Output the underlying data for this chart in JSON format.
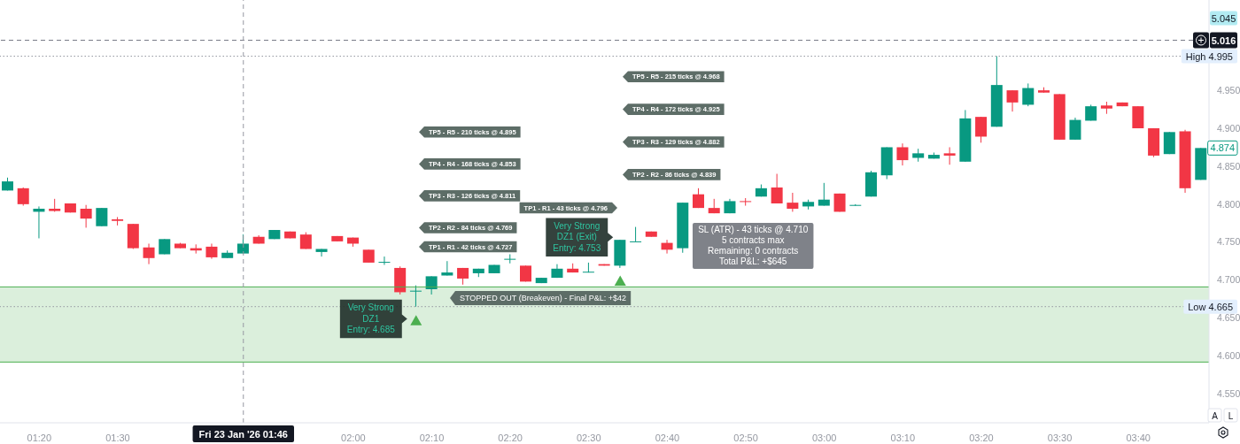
{
  "chart_data": {
    "type": "candlestick",
    "x": [
      "2026-01-23T01:16",
      "2026-01-23T01:18",
      "2026-01-23T01:20",
      "2026-01-23T01:22",
      "2026-01-23T01:24",
      "2026-01-23T01:26",
      "2026-01-23T01:28",
      "2026-01-23T01:30",
      "2026-01-23T01:32",
      "2026-01-23T01:34",
      "2026-01-23T01:36",
      "2026-01-23T01:38",
      "2026-01-23T01:40",
      "2026-01-23T01:42",
      "2026-01-23T01:44",
      "2026-01-23T01:46",
      "2026-01-23T01:48",
      "2026-01-23T01:50",
      "2026-01-23T01:52",
      "2026-01-23T01:54",
      "2026-01-23T01:56",
      "2026-01-23T01:58",
      "2026-01-23T02:00",
      "2026-01-23T02:02",
      "2026-01-23T02:04",
      "2026-01-23T02:06",
      "2026-01-23T02:08",
      "2026-01-23T02:10",
      "2026-01-23T02:12",
      "2026-01-23T02:14",
      "2026-01-23T02:16",
      "2026-01-23T02:18",
      "2026-01-23T02:20",
      "2026-01-23T02:22",
      "2026-01-23T02:24",
      "2026-01-23T02:26",
      "2026-01-23T02:28",
      "2026-01-23T02:30",
      "2026-01-23T02:32",
      "2026-01-23T02:34",
      "2026-01-23T02:36",
      "2026-01-23T02:38",
      "2026-01-23T02:40",
      "2026-01-23T02:42",
      "2026-01-23T02:44",
      "2026-01-23T02:46",
      "2026-01-23T02:48",
      "2026-01-23T02:50",
      "2026-01-23T02:52",
      "2026-01-23T02:54",
      "2026-01-23T02:56",
      "2026-01-23T02:58",
      "2026-01-23T03:00",
      "2026-01-23T03:02",
      "2026-01-23T03:04",
      "2026-01-23T03:06",
      "2026-01-23T03:08",
      "2026-01-23T03:10",
      "2026-01-23T03:12",
      "2026-01-23T03:14",
      "2026-01-23T03:16",
      "2026-01-23T03:18",
      "2026-01-23T03:20",
      "2026-01-23T03:22",
      "2026-01-23T03:24",
      "2026-01-23T03:26",
      "2026-01-23T03:28",
      "2026-01-23T03:30",
      "2026-01-23T03:32",
      "2026-01-23T03:34",
      "2026-01-23T03:36",
      "2026-01-23T03:38",
      "2026-01-23T03:40",
      "2026-01-23T03:42",
      "2026-01-23T03:44",
      "2026-01-23T03:46",
      "2026-01-23T03:48"
    ],
    "ohlc": [
      [
        4.818,
        4.835,
        4.818,
        4.83
      ],
      [
        4.821,
        4.822,
        4.798,
        4.8
      ],
      [
        4.79,
        4.797,
        4.755,
        4.794
      ],
      [
        4.794,
        4.807,
        4.79,
        4.791
      ],
      [
        4.801,
        4.801,
        4.789,
        4.789
      ],
      [
        4.794,
        4.799,
        4.769,
        4.781
      ],
      [
        4.771,
        4.795,
        4.771,
        4.795
      ],
      [
        4.78,
        4.783,
        4.772,
        4.778
      ],
      [
        4.774,
        4.774,
        4.741,
        4.742
      ],
      [
        4.743,
        4.748,
        4.721,
        4.729
      ],
      [
        4.734,
        4.754,
        4.734,
        4.754
      ],
      [
        4.748,
        4.749,
        4.742,
        4.742
      ],
      [
        4.742,
        4.747,
        4.735,
        4.739
      ],
      [
        4.744,
        4.748,
        4.728,
        4.73
      ],
      [
        4.729,
        4.739,
        4.729,
        4.736
      ],
      [
        4.735,
        4.76,
        4.735,
        4.748
      ],
      [
        4.757,
        4.759,
        4.748,
        4.748
      ],
      [
        4.754,
        4.766,
        4.754,
        4.766
      ],
      [
        4.764,
        4.764,
        4.755,
        4.755
      ],
      [
        4.76,
        4.763,
        4.741,
        4.741
      ],
      [
        4.737,
        4.741,
        4.731,
        4.741
      ],
      [
        4.758,
        4.758,
        4.751,
        4.751
      ],
      [
        4.756,
        4.756,
        4.744,
        4.748
      ],
      [
        4.74,
        4.74,
        4.723,
        4.723
      ],
      [
        4.723,
        4.731,
        4.72,
        4.724
      ],
      [
        4.716,
        4.718,
        4.681,
        4.684
      ],
      [
        4.685,
        4.693,
        4.665,
        4.686
      ],
      [
        4.688,
        4.705,
        4.681,
        4.705
      ],
      [
        4.706,
        4.725,
        4.706,
        4.71
      ],
      [
        4.716,
        4.716,
        4.694,
        4.702
      ],
      [
        4.709,
        4.715,
        4.704,
        4.715
      ],
      [
        4.709,
        4.72,
        4.709,
        4.72
      ],
      [
        4.727,
        4.734,
        4.722,
        4.728
      ],
      [
        4.719,
        4.719,
        4.698,
        4.698
      ],
      [
        4.696,
        4.703,
        4.696,
        4.703
      ],
      [
        4.703,
        4.721,
        4.703,
        4.715
      ],
      [
        4.715,
        4.722,
        4.71,
        4.71
      ],
      [
        4.711,
        4.723,
        4.71,
        4.711
      ],
      [
        4.721,
        4.721,
        4.719,
        4.719
      ],
      [
        4.719,
        4.753,
        4.716,
        4.753
      ],
      [
        4.751,
        4.77,
        4.751,
        4.751
      ],
      [
        4.764,
        4.764,
        4.757,
        4.757
      ],
      [
        4.749,
        4.753,
        4.735,
        4.74
      ],
      [
        4.742,
        4.802,
        4.736,
        4.802
      ],
      [
        4.813,
        4.821,
        4.795,
        4.795
      ],
      [
        4.795,
        4.807,
        4.788,
        4.788
      ],
      [
        4.788,
        4.807,
        4.788,
        4.804
      ],
      [
        4.804,
        4.808,
        4.798,
        4.803
      ],
      [
        4.81,
        4.826,
        4.81,
        4.821
      ],
      [
        4.822,
        4.84,
        4.801,
        4.801
      ],
      [
        4.802,
        4.815,
        4.79,
        4.794
      ],
      [
        4.797,
        4.806,
        4.793,
        4.803
      ],
      [
        4.798,
        4.828,
        4.798,
        4.806
      ],
      [
        4.814,
        4.814,
        4.79,
        4.79
      ],
      [
        4.799,
        4.8,
        4.798,
        4.799
      ],
      [
        4.81,
        4.844,
        4.81,
        4.842
      ],
      [
        4.838,
        4.875,
        4.833,
        4.875
      ],
      [
        4.875,
        4.88,
        4.851,
        4.858
      ],
      [
        4.861,
        4.873,
        4.856,
        4.867
      ],
      [
        4.86,
        4.868,
        4.86,
        4.865
      ],
      [
        4.867,
        4.875,
        4.852,
        4.864
      ],
      [
        4.856,
        4.924,
        4.856,
        4.913
      ],
      [
        4.915,
        4.915,
        4.881,
        4.889
      ],
      [
        4.902,
        4.995,
        4.902,
        4.957
      ],
      [
        4.95,
        4.95,
        4.922,
        4.934
      ],
      [
        4.931,
        4.959,
        4.929,
        4.953
      ],
      [
        4.95,
        4.954,
        4.947,
        4.947
      ],
      [
        4.945,
        4.945,
        4.885,
        4.885
      ],
      [
        4.885,
        4.914,
        4.885,
        4.911
      ],
      [
        4.91,
        4.931,
        4.91,
        4.929
      ],
      [
        4.93,
        4.935,
        4.919,
        4.926
      ],
      [
        4.934,
        4.934,
        4.929,
        4.929
      ],
      [
        4.929,
        4.929,
        4.9,
        4.9
      ],
      [
        4.9,
        4.9,
        4.862,
        4.864
      ],
      [
        4.866,
        4.895,
        4.866,
        4.895
      ],
      [
        4.896,
        4.898,
        4.815,
        4.821
      ],
      [
        4.832,
        4.874,
        4.832,
        4.874
      ]
    ],
    "colors": [
      "#089981",
      "#f23645",
      "#089981",
      "#f23645",
      "#f23645",
      "#f23645",
      "#089981",
      "#f23645",
      "#f23645",
      "#f23645",
      "#089981",
      "#f23645",
      "#f23645",
      "#f23645",
      "#089981",
      "#089981",
      "#f23645",
      "#089981",
      "#f23645",
      "#f23645",
      "#089981",
      "#f23645",
      "#f23645",
      "#f23645",
      "#089981",
      "#f23645",
      "#089981",
      "#089981",
      "#089981",
      "#f23645",
      "#089981",
      "#089981",
      "#089981",
      "#f23645",
      "#089981",
      "#089981",
      "#f23645",
      "#089981",
      "#f23645",
      "#089981",
      "#089981",
      "#f23645",
      "#f23645",
      "#089981",
      "#f23645",
      "#f23645",
      "#089981",
      "#f23645",
      "#089981",
      "#f23645",
      "#f23645",
      "#089981",
      "#089981",
      "#f23645",
      "#089981",
      "#089981",
      "#089981",
      "#f23645",
      "#089981",
      "#089981",
      "#f23645",
      "#089981",
      "#f23645",
      "#089981",
      "#f23645",
      "#089981",
      "#f23645",
      "#f23645",
      "#089981",
      "#089981",
      "#f23645",
      "#f23645",
      "#f23645",
      "#f23645",
      "#089981",
      "#f23645",
      "#089981"
    ],
    "value_labels": [
      null,
      null,
      null,
      null,
      null,
      null,
      null,
      null,
      null,
      null,
      null,
      null,
      null,
      null,
      null,
      null,
      null,
      null,
      null,
      null,
      null,
      null,
      null,
      null,
      null,
      null,
      null,
      null,
      null,
      null,
      null,
      null,
      null,
      null,
      null,
      null,
      null,
      null,
      null,
      null,
      null,
      null,
      null,
      null,
      null,
      null,
      null,
      null,
      null,
      null,
      null,
      null,
      null,
      null,
      null,
      null,
      null,
      null,
      null,
      null,
      null,
      null,
      null,
      null,
      null,
      null,
      null,
      null,
      null,
      null,
      null,
      null,
      null,
      null,
      null,
      null,
      "4.874"
    ],
    "series": [
      {
        "type": "scatter",
        "x": [
          "2026-01-23T02:08",
          "2026-01-23T02:34"
        ],
        "values": [
          4.647,
          4.699
        ],
        "color": "#4caf50",
        "marker": "triangle"
      }
    ],
    "xlim": [
      "2026-01-23T01:15",
      "2026-01-23T03:49"
    ],
    "xticks": [
      {
        "value": "2026-01-23T01:20",
        "label": "01:20"
      },
      {
        "value": "2026-01-23T01:30",
        "label": "01:30"
      },
      {
        "value": "2026-01-23T02:00",
        "label": "02:00"
      },
      {
        "value": "2026-01-23T02:10",
        "label": "02:10"
      },
      {
        "value": "2026-01-23T02:20",
        "label": "02:20"
      },
      {
        "value": "2026-01-23T02:30",
        "label": "02:30"
      },
      {
        "value": "2026-01-23T02:40",
        "label": "02:40"
      },
      {
        "value": "2026-01-23T02:50",
        "label": "02:50"
      },
      {
        "value": "2026-01-23T03:00",
        "label": "03:00"
      },
      {
        "value": "2026-01-23T03:10",
        "label": "03:10"
      },
      {
        "value": "2026-01-23T03:20",
        "label": "03:20"
      },
      {
        "value": "2026-01-23T03:30",
        "label": "03:30"
      },
      {
        "value": "2026-01-23T03:40",
        "label": "03:40"
      }
    ],
    "ylim": [
      4.512,
      5.069
    ],
    "yticks": [
      {
        "value": 4.55,
        "label": "4.550"
      },
      {
        "value": 4.6,
        "label": "4.600"
      },
      {
        "value": 4.65,
        "label": "4.650"
      },
      {
        "value": 4.7,
        "label": "4.700"
      },
      {
        "value": 4.75,
        "label": "4.750"
      },
      {
        "value": 4.8,
        "label": "4.800"
      },
      {
        "value": 4.85,
        "label": "4.850"
      },
      {
        "value": 4.9,
        "label": "4.900"
      },
      {
        "value": 4.95,
        "label": "4.950"
      }
    ],
    "bands": [
      {
        "axis": "y",
        "from": 4.592,
        "to": 4.691,
        "color": "#4caf50"
      }
    ],
    "ref_lines": [
      {
        "axis": "y",
        "value": 4.691,
        "color": "#4caf50"
      },
      {
        "axis": "y",
        "value": 4.592,
        "color": "#4caf50"
      },
      {
        "axis": "y",
        "value": 5.016,
        "label": "5.016",
        "color": "#787b86",
        "line_style": "dashed"
      },
      {
        "axis": "y",
        "value": 4.995,
        "label": "High 4.995",
        "color": "#9598a1",
        "line_style": "dotted"
      },
      {
        "axis": "y",
        "value": 4.665,
        "label": "Low 4.665",
        "color": "#9598a1",
        "line_style": "dotted"
      },
      {
        "axis": "x",
        "value": "2026-01-23T01:46",
        "label": "Fri 23 Jan '26 01:46",
        "color": "#9598a1",
        "line_style": "dashed"
      }
    ],
    "annotations": [
      {
        "text": "Very Strong\nDZ1\nEntry: 4.685",
        "x": "2026-01-23T02:08",
        "y": 4.685
      },
      {
        "text": "Very Strong\nDZ1 (Exit)\nEntry: 4.753",
        "x": "2026-01-23T02:34",
        "y": 4.753
      },
      "TP5 - R5 - 210 ticks @ 4.895",
      "TP4 - R4 - 168 ticks @ 4.853",
      "TP3 - R3 - 126 ticks @ 4.811",
      "TP2 - R2 - 84 ticks @ 4.769",
      "TP1 - R1 - 42 ticks @ 4.727",
      "TP5 - R5 - 215 ticks @ 4.968",
      "TP4 - R4 - 172 ticks @ 4.925",
      "TP3 - R3 - 129 ticks @ 4.882",
      "TP2 - R2 - 86 ticks @ 4.839",
      "TP1 - R1 - 43 ticks @ 4.796",
      "STOPPED OUT (Breakeven) - Final P&L: +$42",
      "SL (ATR) - 43 ticks @ 4.710\n5 contracts max\nRemaining: 0 contracts\nTotal P&L: +$645",
      {
        "text": "5.045",
        "y": 5.045
      },
      "A",
      "L"
    ]
  }
}
